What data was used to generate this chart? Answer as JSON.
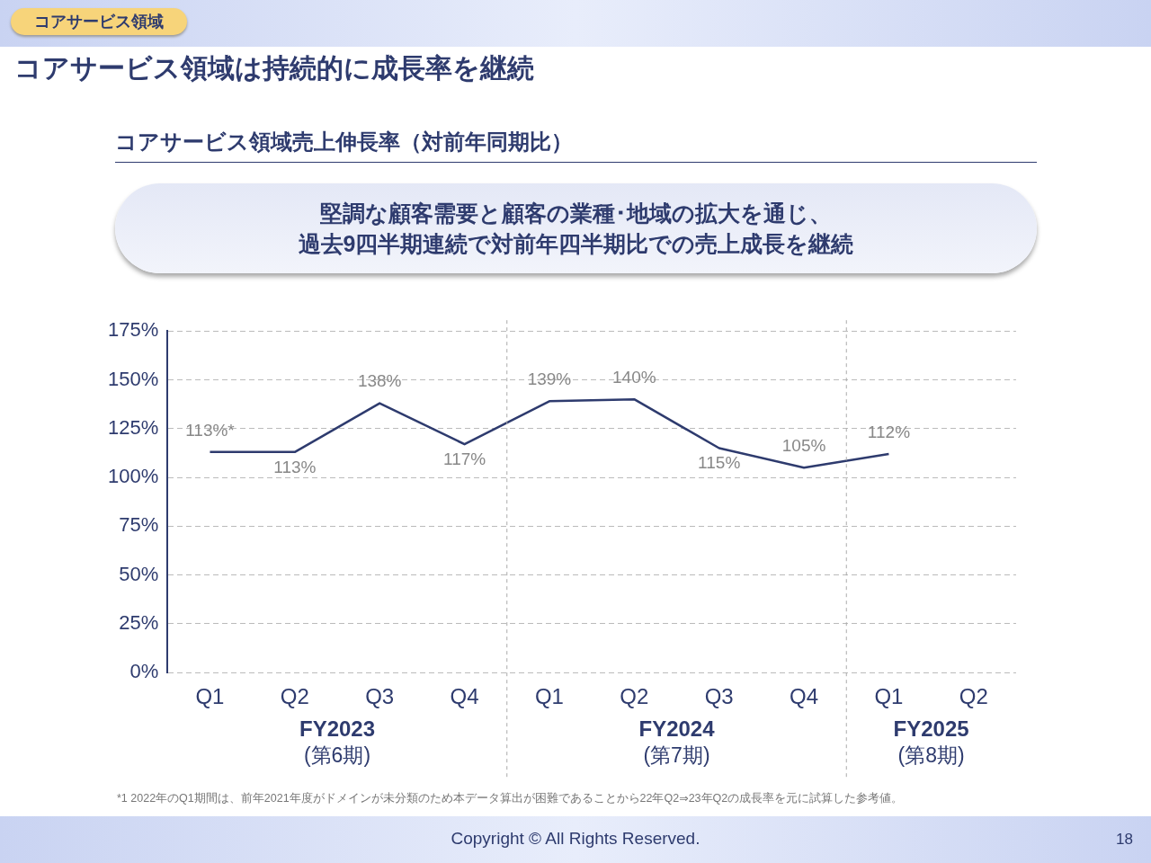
{
  "chart_data": {
    "type": "line",
    "title": "コアサービス領域売上伸長率（対前年同期比）",
    "subtitle": "堅調な顧客需要と顧客の業種･地域の拡大を通じ、",
    "annotations": [
      "コアサービス領域",
      "コアサービス領域は持続的に成長率を継続",
      "FY2023\n(第6期)",
      "FY2024\n(第7期)",
      "FY2025\n(第8期)",
      "*1 2022年のQ1期間は、前年2021年度がドメインが未分類のため本データ算出が困難であることから22年Q2⇒23年Q2の成長率を元に試算した参考値。",
      "Copyright © All Rights Reserved.",
      "18",
      "過去9四半期連続で対前年四半期比での売上成長を継続"
    ],
    "categories": [
      "Q1",
      "Q2",
      "Q3",
      "Q4",
      "Q1",
      "Q2",
      "Q3",
      "Q4",
      "Q1",
      "Q2"
    ],
    "series": [
      {
        "color": "#2e3b6e",
        "values": [
          113,
          113,
          138,
          117,
          139,
          140,
          115,
          105,
          112,
          null
        ],
        "value_labels": [
          "113%*",
          "113%",
          "138%",
          "117%",
          "139%",
          "140%",
          "115%",
          "105%",
          "112%",
          null
        ]
      }
    ],
    "ylim": [
      0,
      175
    ],
    "yticks": [
      {
        "value": 0,
        "label": "0%"
      },
      {
        "value": 25,
        "label": "25%"
      },
      {
        "value": 50,
        "label": "50%"
      },
      {
        "value": 75,
        "label": "75%"
      },
      {
        "value": 100,
        "label": "100%"
      },
      {
        "value": 125,
        "label": "125%"
      },
      {
        "value": 150,
        "label": "150%"
      },
      {
        "value": 175,
        "label": "175%"
      }
    ],
    "grid": "y",
    "legend": false,
    "marker": "none",
    "line_style": "solid"
  }
}
